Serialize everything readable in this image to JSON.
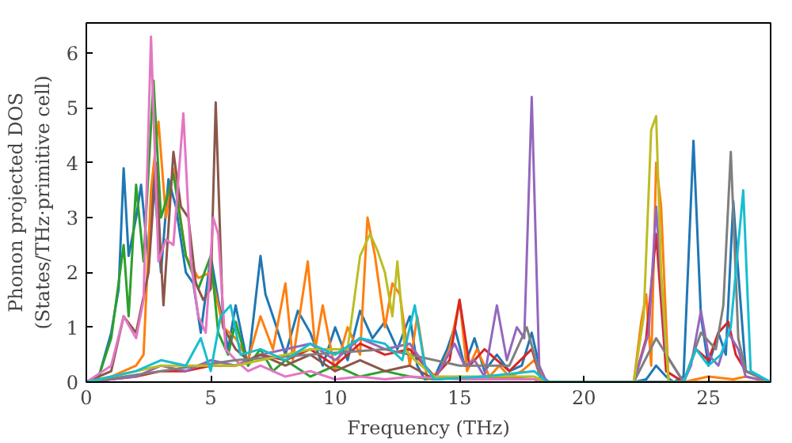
{
  "chart_data": {
    "type": "line",
    "xlabel": "Frequency (THz)",
    "ylabel": "Phonon projected DOS\n(States/THz·primitive cell)",
    "xlim": [
      0,
      27.5
    ],
    "ylim": [
      0,
      6.55
    ],
    "xticks": [
      0,
      5,
      10,
      15,
      20,
      25
    ],
    "yticks": [
      0,
      1,
      2,
      3,
      4,
      5,
      6
    ],
    "grid": false,
    "marker": "none",
    "line_style": "solid",
    "series": [
      {
        "color": "#1f77b4",
        "x": [
          0,
          0.5,
          1.0,
          1.3,
          1.5,
          1.7,
          2.0,
          2.2,
          2.5,
          2.7,
          3.0,
          3.3,
          3.6,
          4.0,
          4.3,
          4.6,
          5.0,
          5.3,
          5.7,
          6.0,
          6.5,
          7.0,
          7.2,
          7.5,
          8.0,
          8.5,
          9.0,
          9.5,
          10.0,
          10.5,
          11.0,
          11.5,
          12.0,
          12.5,
          13.0,
          13.3,
          13.6,
          14.0,
          14.5,
          14.8,
          15.2,
          15.6,
          16.0,
          16.5,
          17.0,
          17.5,
          17.9,
          18.3,
          18.6,
          22.0,
          22.5,
          22.9,
          23.3,
          23.6,
          24.0,
          24.4,
          24.7,
          25.0,
          25.4,
          25.7,
          26.0,
          26.2,
          26.5,
          27.5
        ],
        "values": [
          0,
          0.1,
          0.9,
          1.7,
          3.9,
          2.3,
          3.0,
          3.6,
          2.2,
          3.9,
          2.0,
          3.7,
          3.2,
          2.0,
          1.8,
          0.9,
          2.3,
          1.5,
          0.6,
          1.4,
          0.3,
          2.3,
          1.6,
          1.2,
          0.5,
          1.3,
          0.9,
          0.3,
          1.0,
          0.4,
          1.3,
          0.8,
          1.1,
          0.6,
          1.2,
          0.3,
          0.05,
          0.1,
          0.6,
          1.0,
          0.3,
          0.8,
          0.2,
          0.5,
          0.2,
          0.3,
          0.9,
          0.1,
          0,
          0,
          0.05,
          0.3,
          0.1,
          0,
          0.1,
          4.4,
          1.2,
          0.3,
          0.9,
          0.5,
          3.3,
          2.0,
          0.2,
          0
        ]
      },
      {
        "color": "#ff7f0e",
        "x": [
          0,
          1.0,
          1.5,
          2.0,
          2.3,
          2.6,
          2.9,
          3.2,
          3.5,
          4.0,
          4.5,
          5.0,
          5.5,
          6.0,
          6.5,
          7.0,
          7.5,
          8.0,
          8.3,
          8.6,
          8.9,
          9.2,
          9.5,
          10.0,
          10.5,
          11.0,
          11.3,
          11.6,
          12.0,
          12.3,
          12.6,
          13.0,
          13.3,
          13.7,
          14.2,
          14.6,
          15.0,
          15.3,
          15.7,
          16.2,
          16.6,
          17.0,
          17.5,
          18.0,
          18.5,
          22.0,
          22.3,
          22.5,
          22.7,
          22.9,
          23.1,
          23.4,
          24.0,
          25.0,
          26.0,
          26.5,
          27.5
        ],
        "values": [
          0,
          0.1,
          0.2,
          0.3,
          0.5,
          3.5,
          4.75,
          3.0,
          3.9,
          2.3,
          1.9,
          2.0,
          1.0,
          0.8,
          0.4,
          1.2,
          0.6,
          1.8,
          0.4,
          1.3,
          2.2,
          0.6,
          1.4,
          0.2,
          1.0,
          0.5,
          3.0,
          2.3,
          1.0,
          1.8,
          1.6,
          0.3,
          1.2,
          0.05,
          0.2,
          0.6,
          1.5,
          0.2,
          0.6,
          0.1,
          0.3,
          0.1,
          0.2,
          0.4,
          0,
          0,
          1.1,
          1.6,
          0.3,
          4.0,
          3.2,
          0,
          0,
          0.1,
          0.05,
          0.1,
          0
        ]
      },
      {
        "color": "#2ca02c",
        "x": [
          0,
          0.5,
          1.0,
          1.5,
          1.7,
          2.0,
          2.3,
          2.7,
          3.0,
          3.2,
          3.5,
          4.0,
          4.5,
          5.0,
          5.3,
          5.7,
          6.0,
          6.5,
          7.0,
          7.5,
          8.0,
          9.0,
          10.0,
          11.0,
          12.0,
          13.0,
          14.0,
          15.0,
          16.0,
          18.0,
          18.5,
          27.5
        ],
        "values": [
          0,
          0.1,
          0.8,
          2.5,
          1.2,
          3.6,
          2.2,
          5.5,
          3.0,
          3.3,
          3.8,
          2.3,
          1.7,
          2.3,
          0.9,
          0.5,
          1.1,
          0.3,
          0.6,
          0.2,
          0.4,
          0.1,
          0.3,
          0.1,
          0.2,
          0.1,
          0.05,
          0.1,
          0.05,
          0.05,
          0,
          0
        ]
      },
      {
        "color": "#d62728",
        "x": [
          0,
          2.0,
          3.0,
          4.0,
          5.0,
          6.0,
          7.0,
          8.0,
          9.0,
          10.0,
          11.0,
          12.0,
          13.0,
          14.0,
          14.6,
          15.0,
          15.4,
          16.0,
          17.0,
          17.9,
          18.3,
          22.0,
          22.5,
          22.9,
          23.3,
          24.0,
          24.5,
          25.0,
          25.4,
          25.8,
          26.1,
          26.5,
          27.5
        ],
        "values": [
          0,
          0.1,
          0.2,
          0.2,
          0.3,
          0.3,
          0.5,
          0.4,
          0.6,
          0.3,
          0.7,
          0.5,
          0.6,
          0.1,
          0.4,
          1.5,
          0.3,
          0.6,
          0.2,
          0.6,
          0,
          0,
          0.8,
          2.7,
          0.2,
          0,
          0.6,
          0.4,
          0.9,
          1.1,
          0.5,
          0.2,
          0
        ]
      },
      {
        "color": "#9467bd",
        "x": [
          0,
          2.0,
          3.0,
          4.0,
          5.0,
          6.0,
          7.0,
          8.0,
          9.0,
          10.0,
          11.0,
          12.0,
          13.0,
          14.0,
          14.8,
          15.2,
          15.6,
          16.0,
          16.5,
          16.9,
          17.3,
          17.6,
          17.9,
          18.2,
          18.5,
          22.0,
          22.4,
          22.6,
          22.9,
          23.3,
          24.0,
          24.3,
          24.7,
          25.0,
          25.4,
          25.8,
          26.2,
          26.5,
          27.5
        ],
        "values": [
          0,
          0.1,
          0.3,
          0.2,
          0.4,
          0.3,
          0.5,
          0.6,
          0.7,
          0.4,
          0.8,
          0.6,
          0.7,
          0.05,
          0.7,
          0.3,
          0.4,
          0.1,
          1.4,
          0.4,
          1.0,
          0.8,
          5.2,
          0.3,
          0,
          0,
          0.6,
          0.9,
          3.2,
          0.5,
          0,
          0.3,
          1.3,
          0.5,
          0.3,
          0.9,
          0.6,
          0.1,
          0
        ]
      },
      {
        "color": "#8c564b",
        "x": [
          0,
          1.0,
          1.5,
          2.0,
          2.5,
          2.8,
          3.1,
          3.5,
          3.8,
          4.1,
          4.4,
          4.7,
          5.0,
          5.2,
          5.5,
          6.0,
          6.5,
          7.0,
          8.0,
          9.0,
          10.0,
          11.0,
          12.0,
          13.0,
          14.0,
          16.0,
          18.0,
          18.5,
          27.5
        ],
        "values": [
          0,
          0.2,
          1.2,
          0.9,
          2.0,
          4.0,
          1.4,
          4.2,
          3.2,
          3.0,
          1.8,
          1.5,
          1.7,
          5.1,
          1.0,
          0.6,
          0.4,
          0.5,
          0.3,
          0.5,
          0.2,
          0.4,
          0.2,
          0.3,
          0.05,
          0.1,
          0.05,
          0,
          0
        ]
      },
      {
        "color": "#e377c2",
        "x": [
          0,
          1.0,
          1.5,
          2.0,
          2.3,
          2.6,
          2.9,
          3.2,
          3.5,
          3.9,
          4.2,
          4.5,
          4.8,
          5.1,
          5.3,
          5.6,
          6.0,
          6.5,
          7.0,
          8.0,
          9.0,
          10.0,
          11.0,
          12.0,
          13.0,
          15.0,
          18.0,
          18.5,
          27.5
        ],
        "values": [
          0,
          0.3,
          1.2,
          0.8,
          1.5,
          6.3,
          2.2,
          2.6,
          2.5,
          4.9,
          2.2,
          1.2,
          0.9,
          3.0,
          2.7,
          0.6,
          0.4,
          0.2,
          0.3,
          0.1,
          0.2,
          0.05,
          0.1,
          0.05,
          0.1,
          0.05,
          0.05,
          0,
          0
        ]
      },
      {
        "color": "#7f7f7f",
        "x": [
          0,
          3.0,
          6.0,
          9.0,
          12.0,
          15.0,
          17.0,
          17.7,
          18.3,
          22.0,
          22.9,
          24.0,
          24.7,
          25.3,
          25.6,
          25.9,
          26.2,
          26.5,
          27.5
        ],
        "values": [
          0,
          0.2,
          0.4,
          0.5,
          0.6,
          0.3,
          0.3,
          1.0,
          0,
          0,
          0.8,
          0,
          0.9,
          0.6,
          1.4,
          4.2,
          0.8,
          0.2,
          0
        ]
      },
      {
        "color": "#bcbd22",
        "x": [
          0,
          3.0,
          6.0,
          9.0,
          10.5,
          11.0,
          11.4,
          11.7,
          12.0,
          12.3,
          12.5,
          12.8,
          13.2,
          14.0,
          18.0,
          18.5,
          22.0,
          22.4,
          22.7,
          22.9,
          23.1,
          23.4,
          27.5
        ],
        "values": [
          0,
          0.3,
          0.3,
          0.6,
          0.6,
          2.3,
          2.7,
          2.4,
          2.0,
          1.2,
          2.2,
          0.6,
          0.4,
          0.1,
          0.1,
          0,
          0,
          1.2,
          4.6,
          4.85,
          2.0,
          0,
          0
        ]
      },
      {
        "color": "#17becf",
        "x": [
          0,
          2.0,
          3.0,
          4.0,
          4.6,
          5.0,
          5.4,
          5.8,
          6.2,
          7.0,
          8.0,
          9.0,
          10.0,
          11.0,
          12.0,
          12.7,
          13.2,
          13.6,
          14.0,
          16.0,
          18.0,
          18.5,
          24.0,
          24.5,
          25.0,
          25.5,
          25.9,
          26.4,
          26.7,
          27.5
        ],
        "values": [
          0,
          0.2,
          0.4,
          0.3,
          0.8,
          0.2,
          1.2,
          1.4,
          0.5,
          0.6,
          0.4,
          0.7,
          0.5,
          0.8,
          0.7,
          0.4,
          1.4,
          0.3,
          0.05,
          0.1,
          0.2,
          0,
          0,
          0.6,
          0.3,
          0.5,
          1.0,
          3.5,
          0.2,
          0
        ]
      }
    ]
  }
}
